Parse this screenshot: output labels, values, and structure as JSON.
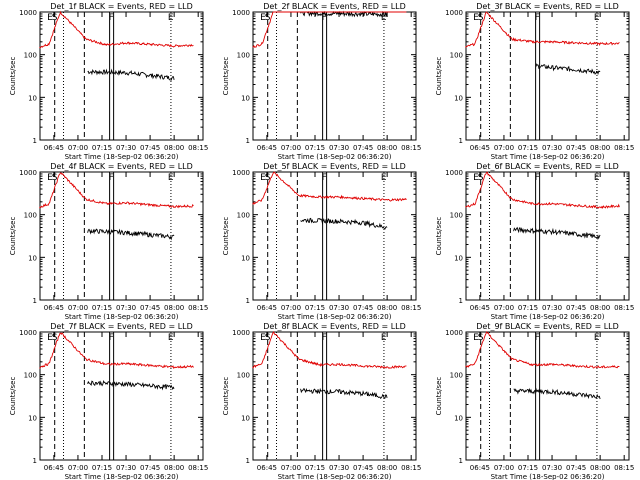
{
  "ylabel": "Counts/sec",
  "xlabel": "Start Time (18-Sep-02 06:36:20)",
  "x_ticks": [
    "06:45",
    "07:00",
    "07:15",
    "07:30",
    "07:45",
    "08:00",
    "08:15"
  ],
  "y_ticks": [
    "1",
    "10",
    "100",
    "1000"
  ],
  "marker_labels": {
    "s": "S",
    "e": "E",
    "f": "F"
  },
  "colors": {
    "events": "#000000",
    "lld": "#e00000"
  },
  "chart_data": [
    {
      "type": "line",
      "title": "Det_1f BLACK = Events, RED = LLD",
      "xlabel": "Start Time (18-Sep-02 06:36:20)",
      "ylabel": "Counts/sec",
      "xlim": [
        "06:36:20",
        "08:18:00"
      ],
      "ylim": [
        1,
        1000
      ],
      "yscale": "log",
      "series": [
        {
          "name": "Events",
          "color": "#000000",
          "x": [
            "07:06",
            "07:30",
            "07:45",
            "08:00"
          ],
          "y": [
            40,
            38,
            33,
            28
          ]
        },
        {
          "name": "LLD",
          "color": "#e00000",
          "x": [
            "06:36",
            "06:42",
            "06:49",
            "07:05",
            "07:18",
            "07:30",
            "07:45",
            "08:00",
            "08:12"
          ],
          "y": [
            150,
            180,
            1000,
            230,
            170,
            190,
            175,
            160,
            170
          ]
        }
      ]
    },
    {
      "type": "line",
      "title": "Det_2f BLACK = Events, RED = LLD",
      "xlabel": "Start Time (18-Sep-02 06:36:20)",
      "ylabel": "Counts/sec",
      "xlim": [
        "06:36:20",
        "08:18:00"
      ],
      "ylim": [
        1,
        1000
      ],
      "yscale": "log",
      "series": [
        {
          "name": "Events",
          "color": "#000000",
          "x": [
            "07:06",
            "07:30",
            "07:45",
            "08:00"
          ],
          "y": [
            950,
            920,
            900,
            880
          ]
        },
        {
          "name": "LLD",
          "color": "#e00000",
          "x": [
            "06:36",
            "06:42",
            "06:49",
            "07:05",
            "07:18",
            "07:30",
            "07:45",
            "08:00",
            "08:12"
          ],
          "y": [
            150,
            180,
            1000,
            1000,
            1000,
            1000,
            1000,
            1000,
            1000
          ]
        }
      ]
    },
    {
      "type": "line",
      "title": "Det_3f BLACK = Events, RED = LLD",
      "xlabel": "Start Time (18-Sep-02 06:36:20)",
      "ylabel": "Counts/sec",
      "xlim": [
        "06:36:20",
        "08:18:00"
      ],
      "ylim": [
        1,
        1000
      ],
      "yscale": "log",
      "series": [
        {
          "name": "Events",
          "color": "#000000",
          "x": [
            "07:20",
            "07:30",
            "07:45",
            "08:00"
          ],
          "y": [
            55,
            50,
            45,
            38
          ]
        },
        {
          "name": "LLD",
          "color": "#e00000",
          "x": [
            "06:36",
            "06:42",
            "06:49",
            "07:05",
            "07:18",
            "07:30",
            "07:45",
            "08:00",
            "08:12"
          ],
          "y": [
            150,
            180,
            1000,
            230,
            200,
            200,
            190,
            180,
            185
          ]
        }
      ]
    },
    {
      "type": "line",
      "title": "Det_4f BLACK = Events, RED = LLD",
      "xlabel": "Start Time (18-Sep-02 06:36:20)",
      "ylabel": "Counts/sec",
      "xlim": [
        "06:36:20",
        "08:18:00"
      ],
      "ylim": [
        1,
        1000
      ],
      "yscale": "log",
      "series": [
        {
          "name": "Events",
          "color": "#000000",
          "x": [
            "07:06",
            "07:30",
            "07:45",
            "08:00"
          ],
          "y": [
            42,
            38,
            34,
            30
          ]
        },
        {
          "name": "LLD",
          "color": "#e00000",
          "x": [
            "06:36",
            "06:42",
            "06:49",
            "07:05",
            "07:18",
            "07:30",
            "07:45",
            "08:00",
            "08:12"
          ],
          "y": [
            150,
            180,
            1000,
            230,
            180,
            190,
            170,
            155,
            160
          ]
        }
      ]
    },
    {
      "type": "line",
      "title": "Det_5f BLACK = Events, RED = LLD",
      "xlabel": "Start Time (18-Sep-02 06:36:20)",
      "ylabel": "Counts/sec",
      "xlim": [
        "06:36:20",
        "08:18:00"
      ],
      "ylim": [
        1,
        1000
      ],
      "yscale": "log",
      "series": [
        {
          "name": "Events",
          "color": "#000000",
          "x": [
            "07:06",
            "07:30",
            "07:45",
            "08:00"
          ],
          "y": [
            75,
            70,
            65,
            50
          ]
        },
        {
          "name": "LLD",
          "color": "#e00000",
          "x": [
            "06:36",
            "06:42",
            "06:49",
            "07:05",
            "07:18",
            "07:30",
            "07:45",
            "08:00",
            "08:12"
          ],
          "y": [
            180,
            220,
            1000,
            280,
            260,
            260,
            240,
            220,
            230
          ]
        }
      ]
    },
    {
      "type": "line",
      "title": "Det_6f BLACK = Events, RED = LLD",
      "xlabel": "Start Time (18-Sep-02 06:36:20)",
      "ylabel": "Counts/sec",
      "xlim": [
        "06:36:20",
        "08:18:00"
      ],
      "ylim": [
        1,
        1000
      ],
      "yscale": "log",
      "series": [
        {
          "name": "Events",
          "color": "#000000",
          "x": [
            "07:06",
            "07:30",
            "07:45",
            "08:00"
          ],
          "y": [
            45,
            40,
            35,
            30
          ]
        },
        {
          "name": "LLD",
          "color": "#e00000",
          "x": [
            "06:36",
            "06:42",
            "06:49",
            "07:05",
            "07:18",
            "07:30",
            "07:45",
            "08:00",
            "08:12"
          ],
          "y": [
            150,
            180,
            1000,
            230,
            180,
            180,
            165,
            150,
            160
          ]
        }
      ]
    },
    {
      "type": "line",
      "title": "Det_7f BLACK = Events, RED = LLD",
      "xlabel": "Start Time (18-Sep-02 06:36:20)",
      "ylabel": "Counts/sec",
      "xlim": [
        "06:36:20",
        "08:18:00"
      ],
      "ylim": [
        1,
        1000
      ],
      "yscale": "log",
      "series": [
        {
          "name": "Events",
          "color": "#000000",
          "x": [
            "07:06",
            "07:30",
            "07:45",
            "08:00"
          ],
          "y": [
            65,
            60,
            55,
            50
          ]
        },
        {
          "name": "LLD",
          "color": "#e00000",
          "x": [
            "06:36",
            "06:42",
            "06:49",
            "07:05",
            "07:18",
            "07:30",
            "07:45",
            "08:00",
            "08:12"
          ],
          "y": [
            150,
            180,
            1000,
            230,
            175,
            180,
            165,
            150,
            155
          ]
        }
      ]
    },
    {
      "type": "line",
      "title": "Det_8f BLACK = Events, RED = LLD",
      "xlabel": "Start Time (18-Sep-02 06:36:20)",
      "ylabel": "Counts/sec",
      "xlim": [
        "06:36:20",
        "08:18:00"
      ],
      "ylim": [
        1,
        1000
      ],
      "yscale": "log",
      "series": [
        {
          "name": "Events",
          "color": "#000000",
          "x": [
            "07:06",
            "07:30",
            "07:45",
            "08:00"
          ],
          "y": [
            42,
            40,
            36,
            30
          ]
        },
        {
          "name": "LLD",
          "color": "#e00000",
          "x": [
            "06:36",
            "06:42",
            "06:49",
            "07:05",
            "07:18",
            "07:30",
            "07:45",
            "08:00",
            "08:12"
          ],
          "y": [
            150,
            180,
            1000,
            230,
            170,
            175,
            160,
            150,
            155
          ]
        }
      ]
    },
    {
      "type": "line",
      "title": "Det_9f BLACK = Events, RED = LLD",
      "xlabel": "Start Time (18-Sep-02 06:36:20)",
      "ylabel": "Counts/sec",
      "xlim": [
        "06:36:20",
        "08:18:00"
      ],
      "ylim": [
        1,
        1000
      ],
      "yscale": "log",
      "series": [
        {
          "name": "Events",
          "color": "#000000",
          "x": [
            "07:06",
            "07:30",
            "07:45",
            "08:00"
          ],
          "y": [
            42,
            40,
            35,
            30
          ]
        },
        {
          "name": "LLD",
          "color": "#e00000",
          "x": [
            "06:36",
            "06:42",
            "06:49",
            "07:05",
            "07:18",
            "07:30",
            "07:45",
            "08:00",
            "08:12"
          ],
          "y": [
            150,
            180,
            1000,
            230,
            170,
            175,
            160,
            150,
            155
          ]
        }
      ]
    }
  ]
}
